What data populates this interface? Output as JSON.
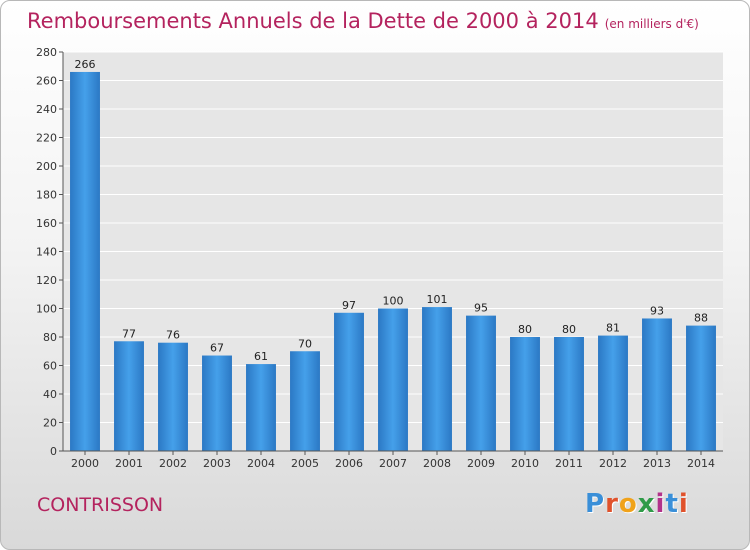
{
  "header": {
    "title": "Remboursements Annuels de la Dette de 2000 à 2014",
    "unit": "(en milliers d'€)"
  },
  "footer": {
    "place": "CONTRISSON",
    "logo_letters": [
      "P",
      "r",
      "o",
      "x",
      "i",
      "t",
      "i"
    ],
    "logo_colors": [
      "#3a8fd8",
      "#e0522c",
      "#f0a21a",
      "#2f9b48",
      "#b2328a",
      "#3a8fd8",
      "#e0522c"
    ]
  },
  "colors": {
    "bar": "#3a8fd8",
    "bar_dark": "#2874c0",
    "grid": "#ffffff",
    "plot_bg": "#e6e6e6"
  },
  "chart_data": {
    "type": "bar",
    "title": "Remboursements Annuels de la Dette de 2000 à 2014",
    "xlabel": "",
    "ylabel": "",
    "ylim": [
      0,
      280
    ],
    "ytick_step": 20,
    "grid": true,
    "categories": [
      "2000",
      "2001",
      "2002",
      "2003",
      "2004",
      "2005",
      "2006",
      "2007",
      "2008",
      "2009",
      "2010",
      "2011",
      "2012",
      "2013",
      "2014"
    ],
    "values": [
      266,
      77,
      76,
      67,
      61,
      70,
      97,
      100,
      101,
      95,
      80,
      80,
      81,
      93,
      88
    ]
  }
}
